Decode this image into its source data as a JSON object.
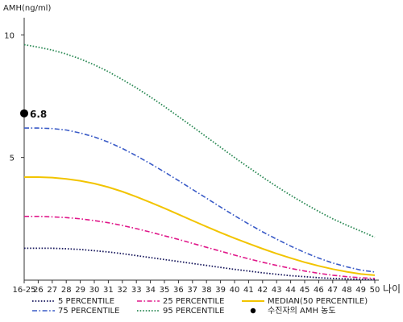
{
  "chart_data": {
    "type": "line",
    "ylabel": "AMH(ng/ml)",
    "xlabel": "나이",
    "x": [
      "16-25",
      "26",
      "27",
      "28",
      "29",
      "30",
      "31",
      "32",
      "33",
      "34",
      "35",
      "36",
      "37",
      "38",
      "39",
      "40",
      "41",
      "42",
      "43",
      "44",
      "45",
      "46",
      "47",
      "48",
      "49",
      "50"
    ],
    "y_ticks": [
      5,
      10
    ],
    "ylim": [
      0,
      10.7
    ],
    "grid": false,
    "legend": "bottom",
    "series": [
      {
        "name": "5 PERCENTILE",
        "style": "dotted",
        "color": "#1a1a5e",
        "values": [
          1.3,
          1.3,
          1.3,
          1.28,
          1.25,
          1.2,
          1.15,
          1.08,
          1.0,
          0.92,
          0.84,
          0.76,
          0.68,
          0.6,
          0.52,
          0.44,
          0.37,
          0.3,
          0.24,
          0.18,
          0.14,
          0.1,
          0.07,
          0.05,
          0.03,
          0.02
        ]
      },
      {
        "name": "25 PERCENTILE",
        "style": "dashdot",
        "color": "#e0188a",
        "values": [
          2.6,
          2.6,
          2.58,
          2.55,
          2.5,
          2.43,
          2.34,
          2.23,
          2.1,
          1.96,
          1.81,
          1.66,
          1.5,
          1.34,
          1.18,
          1.02,
          0.87,
          0.73,
          0.6,
          0.48,
          0.37,
          0.28,
          0.2,
          0.14,
          0.1,
          0.07
        ]
      },
      {
        "name": "MEDIAN(50 PERCENTILE)",
        "style": "solid",
        "color": "#f2c400",
        "values": [
          4.2,
          4.2,
          4.18,
          4.13,
          4.05,
          3.94,
          3.79,
          3.61,
          3.4,
          3.17,
          2.93,
          2.68,
          2.43,
          2.18,
          1.94,
          1.71,
          1.49,
          1.28,
          1.08,
          0.9,
          0.73,
          0.58,
          0.45,
          0.34,
          0.25,
          0.2
        ]
      },
      {
        "name": "75 PERCENTILE",
        "style": "dashdot",
        "color": "#3a5bc7",
        "values": [
          6.2,
          6.2,
          6.18,
          6.12,
          6.0,
          5.84,
          5.63,
          5.37,
          5.07,
          4.75,
          4.41,
          4.06,
          3.7,
          3.34,
          2.98,
          2.63,
          2.29,
          1.97,
          1.67,
          1.39,
          1.13,
          0.9,
          0.7,
          0.54,
          0.41,
          0.33
        ]
      },
      {
        "name": "95 PERCENTILE",
        "style": "dotted",
        "color": "#2e8b57",
        "values": [
          9.6,
          9.5,
          9.38,
          9.22,
          9.02,
          8.78,
          8.5,
          8.18,
          7.84,
          7.47,
          7.08,
          6.67,
          6.26,
          5.84,
          5.42,
          5.0,
          4.6,
          4.2,
          3.82,
          3.46,
          3.12,
          2.8,
          2.5,
          2.24,
          2.0,
          1.75
        ]
      }
    ],
    "marker": {
      "name": "수진자의 AMH 농도",
      "x": "16-25",
      "value": 6.8,
      "label": "6.8",
      "color": "#000000"
    }
  }
}
